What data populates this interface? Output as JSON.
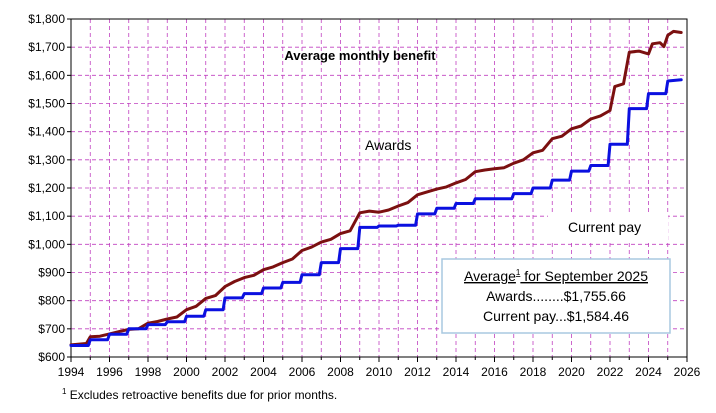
{
  "chart_data": {
    "type": "line",
    "title": "Average monthly benefit",
    "xlabel": "",
    "ylabel": "",
    "xlim": [
      1994,
      2026
    ],
    "ylim": [
      600,
      1800
    ],
    "y_ticks": [
      600,
      700,
      800,
      900,
      1000,
      1100,
      1200,
      1300,
      1400,
      1500,
      1600,
      1700,
      1800
    ],
    "y_tick_labels": [
      "$600",
      "$700",
      "$800",
      "$900",
      "$1,000",
      "$1,100",
      "$1,200",
      "$1,300",
      "$1,400",
      "$1,500",
      "$1,600",
      "$1,700",
      "$1,800"
    ],
    "x_ticks": [
      1994,
      1996,
      1998,
      2000,
      2002,
      2004,
      2006,
      2008,
      2010,
      2012,
      2014,
      2016,
      2018,
      2020,
      2022,
      2024,
      2026
    ],
    "x_tick_labels": [
      "1994",
      "1996",
      "1998",
      "2000",
      "2002",
      "2004",
      "2006",
      "2008",
      "2010",
      "2012",
      "2014",
      "2016",
      "2018",
      "2020",
      "2022",
      "2024",
      "2026"
    ],
    "grid": true,
    "series": [
      {
        "name": "Awards",
        "color": "#7b1010",
        "points": [
          [
            1994.0,
            643
          ],
          [
            1994.8,
            648
          ],
          [
            1995.0,
            672
          ],
          [
            1995.5,
            674
          ],
          [
            1996.0,
            682
          ],
          [
            1996.5,
            690
          ],
          [
            1997.0,
            698
          ],
          [
            1997.5,
            700
          ],
          [
            1998.0,
            720
          ],
          [
            1998.5,
            726
          ],
          [
            1999.0,
            735
          ],
          [
            1999.5,
            742
          ],
          [
            2000.0,
            768
          ],
          [
            2000.5,
            780
          ],
          [
            2001.0,
            808
          ],
          [
            2001.5,
            818
          ],
          [
            2002.0,
            850
          ],
          [
            2002.5,
            868
          ],
          [
            2003.0,
            882
          ],
          [
            2003.5,
            890
          ],
          [
            2004.0,
            910
          ],
          [
            2004.5,
            920
          ],
          [
            2005.0,
            935
          ],
          [
            2005.5,
            948
          ],
          [
            2006.0,
            978
          ],
          [
            2006.5,
            990
          ],
          [
            2007.0,
            1008
          ],
          [
            2007.5,
            1018
          ],
          [
            2008.0,
            1038
          ],
          [
            2008.5,
            1048
          ],
          [
            2009.0,
            1112
          ],
          [
            2009.5,
            1118
          ],
          [
            2010.0,
            1114
          ],
          [
            2010.5,
            1122
          ],
          [
            2011.0,
            1136
          ],
          [
            2011.5,
            1148
          ],
          [
            2012.0,
            1176
          ],
          [
            2012.5,
            1186
          ],
          [
            2013.0,
            1196
          ],
          [
            2013.5,
            1204
          ],
          [
            2014.0,
            1218
          ],
          [
            2014.5,
            1230
          ],
          [
            2015.0,
            1258
          ],
          [
            2015.5,
            1264
          ],
          [
            2016.0,
            1268
          ],
          [
            2016.5,
            1272
          ],
          [
            2017.0,
            1288
          ],
          [
            2017.5,
            1300
          ],
          [
            2018.0,
            1325
          ],
          [
            2018.5,
            1334
          ],
          [
            2019.0,
            1375
          ],
          [
            2019.5,
            1384
          ],
          [
            2020.0,
            1410
          ],
          [
            2020.5,
            1420
          ],
          [
            2021.0,
            1445
          ],
          [
            2021.5,
            1456
          ],
          [
            2022.0,
            1475
          ],
          [
            2022.25,
            1560
          ],
          [
            2022.7,
            1570
          ],
          [
            2023.0,
            1682
          ],
          [
            2023.5,
            1686
          ],
          [
            2024.0,
            1676
          ],
          [
            2024.2,
            1712
          ],
          [
            2024.6,
            1716
          ],
          [
            2024.8,
            1702
          ],
          [
            2025.0,
            1742
          ],
          [
            2025.3,
            1756
          ],
          [
            2025.7,
            1752
          ]
        ]
      },
      {
        "name": "Current pay",
        "color": "#0b10e0",
        "points": [
          [
            1994.0,
            641
          ],
          [
            1994.9,
            641
          ],
          [
            1995.0,
            661
          ],
          [
            1995.9,
            661
          ],
          [
            1996.0,
            681
          ],
          [
            1996.9,
            681
          ],
          [
            1997.0,
            700
          ],
          [
            1997.9,
            700
          ],
          [
            1998.0,
            715
          ],
          [
            1998.9,
            715
          ],
          [
            1999.0,
            725
          ],
          [
            1999.9,
            725
          ],
          [
            2000.0,
            745
          ],
          [
            2000.9,
            745
          ],
          [
            2001.0,
            768
          ],
          [
            2001.9,
            768
          ],
          [
            2002.0,
            810
          ],
          [
            2002.9,
            810
          ],
          [
            2003.0,
            825
          ],
          [
            2003.9,
            825
          ],
          [
            2004.0,
            845
          ],
          [
            2004.9,
            845
          ],
          [
            2005.0,
            865
          ],
          [
            2005.9,
            865
          ],
          [
            2006.0,
            892
          ],
          [
            2006.9,
            892
          ],
          [
            2007.0,
            935
          ],
          [
            2007.9,
            935
          ],
          [
            2008.0,
            985
          ],
          [
            2008.9,
            985
          ],
          [
            2009.0,
            1060
          ],
          [
            2009.9,
            1060
          ],
          [
            2010.0,
            1065
          ],
          [
            2010.9,
            1065
          ],
          [
            2011.0,
            1068
          ],
          [
            2011.9,
            1068
          ],
          [
            2012.0,
            1108
          ],
          [
            2012.9,
            1108
          ],
          [
            2013.0,
            1128
          ],
          [
            2013.9,
            1128
          ],
          [
            2014.0,
            1145
          ],
          [
            2014.9,
            1145
          ],
          [
            2015.0,
            1162
          ],
          [
            2015.9,
            1162
          ],
          [
            2016.0,
            1162
          ],
          [
            2016.9,
            1162
          ],
          [
            2017.0,
            1180
          ],
          [
            2017.9,
            1180
          ],
          [
            2018.0,
            1200
          ],
          [
            2018.9,
            1200
          ],
          [
            2019.0,
            1228
          ],
          [
            2019.9,
            1228
          ],
          [
            2020.0,
            1260
          ],
          [
            2020.9,
            1260
          ],
          [
            2021.0,
            1280
          ],
          [
            2021.9,
            1280
          ],
          [
            2022.0,
            1355
          ],
          [
            2022.9,
            1355
          ],
          [
            2023.0,
            1482
          ],
          [
            2023.9,
            1482
          ],
          [
            2024.0,
            1535
          ],
          [
            2024.9,
            1535
          ],
          [
            2025.0,
            1580
          ],
          [
            2025.7,
            1584
          ]
        ]
      }
    ],
    "annotations": {
      "awards_label": "Awards",
      "current_pay_label": "Current pay"
    },
    "box": {
      "heading_pre": "Average",
      "heading_sup": "1",
      "heading_post": " for September 2025",
      "awards_line": "Awards........$1,755.66",
      "current_line": "Current pay...$1,584.46"
    },
    "footnote": {
      "sup": "1",
      "text": " Excludes retroactive  benefits  due for prior months."
    },
    "colors": {
      "grid": "#c040c0",
      "box_border": "#a8c8e0"
    }
  }
}
